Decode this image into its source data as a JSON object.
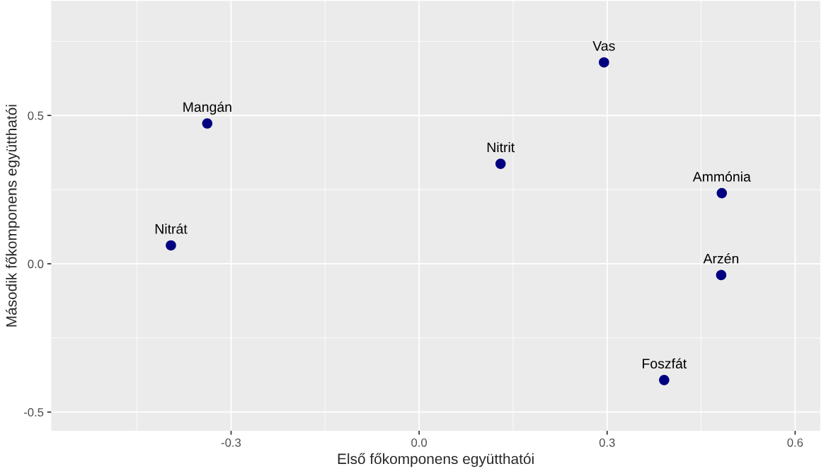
{
  "chart_data": {
    "type": "scatter",
    "xlabel": "Első főkomponens együtthatói",
    "ylabel": "Második főkomponens együtthatói",
    "x": [
      0.295,
      -0.338,
      0.13,
      0.483,
      -0.396,
      0.482,
      0.391
    ],
    "values": [
      0.679,
      0.473,
      0.337,
      0.238,
      0.062,
      -0.038,
      -0.392
    ],
    "color": "#000080",
    "marker": "circle",
    "annotations": [
      {
        "text": "Vas",
        "x": 0.295,
        "y": 0.679
      },
      {
        "text": "Mangán",
        "x": -0.338,
        "y": 0.473
      },
      {
        "text": "Nitrit",
        "x": 0.13,
        "y": 0.337
      },
      {
        "text": "Ammónia",
        "x": 0.483,
        "y": 0.238
      },
      {
        "text": "Nitrát",
        "x": -0.396,
        "y": 0.062
      },
      {
        "text": "Arzén",
        "x": 0.482,
        "y": -0.038
      },
      {
        "text": "Foszfát",
        "x": 0.391,
        "y": -0.392
      }
    ],
    "xlim": [
      -0.587,
      0.64
    ],
    "ylim": [
      -0.563,
      0.886
    ],
    "xticks": [
      {
        "value": -0.3,
        "label": "-0.3"
      },
      {
        "value": 0.0,
        "label": "0.0"
      },
      {
        "value": 0.3,
        "label": "0.3"
      },
      {
        "value": 0.6,
        "label": "0.6"
      }
    ],
    "yticks": [
      {
        "value": -0.5,
        "label": "-0.5"
      },
      {
        "value": 0.0,
        "label": "0.0"
      },
      {
        "value": 0.5,
        "label": "0.5"
      }
    ],
    "grid": true
  }
}
